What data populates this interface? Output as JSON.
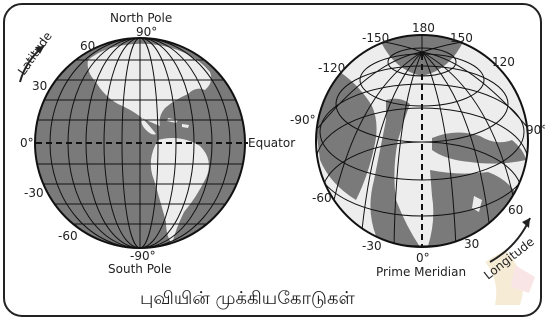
{
  "left_globe": {
    "top_label": "North Pole",
    "bottom_label": "South Pole",
    "side_label": "Equator",
    "arrow_label": "Latitude",
    "lat_labels": {
      "n90": "90°",
      "n60": "60",
      "n30": "30",
      "zero": "0°",
      "s30": "-30",
      "s60": "-60",
      "s90": "-90°"
    }
  },
  "right_globe": {
    "bottom_label": "Prime Meridian",
    "arrow_label": "Longitude",
    "lon_labels": {
      "e180": "180",
      "w150": "-150",
      "e150": "150",
      "w120": "-120",
      "e120": "120",
      "w90": "-90°",
      "e90": "90°",
      "w60": "-60",
      "e60": "60",
      "w30": "-30",
      "e30": "30",
      "zero": "0°"
    }
  },
  "caption": "புவியின் முக்கியகோடுகள்",
  "colors": {
    "ocean": "#7a7a7a",
    "land": "#ededed",
    "grid": "#111111",
    "frame": "#222222",
    "watermark": "#e6c98a"
  }
}
